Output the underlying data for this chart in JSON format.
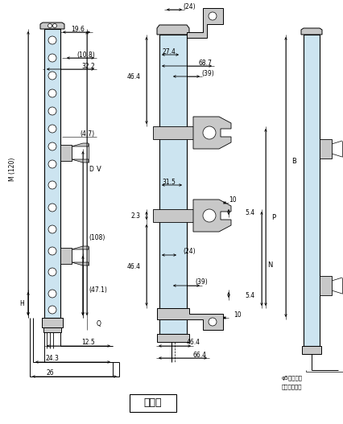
{
  "bg_color": "#ffffff",
  "light_blue": "#cce4f0",
  "gray_light": "#c8c8c8",
  "gray_med": "#a8a8a8",
  "line_color": "#000000",
  "title": "受光器",
  "annotation_line1": "φ5灰色電線",
  "annotation_line2": "（帶黑色線）",
  "figsize": [
    4.27,
    5.27
  ],
  "dpi": 100
}
